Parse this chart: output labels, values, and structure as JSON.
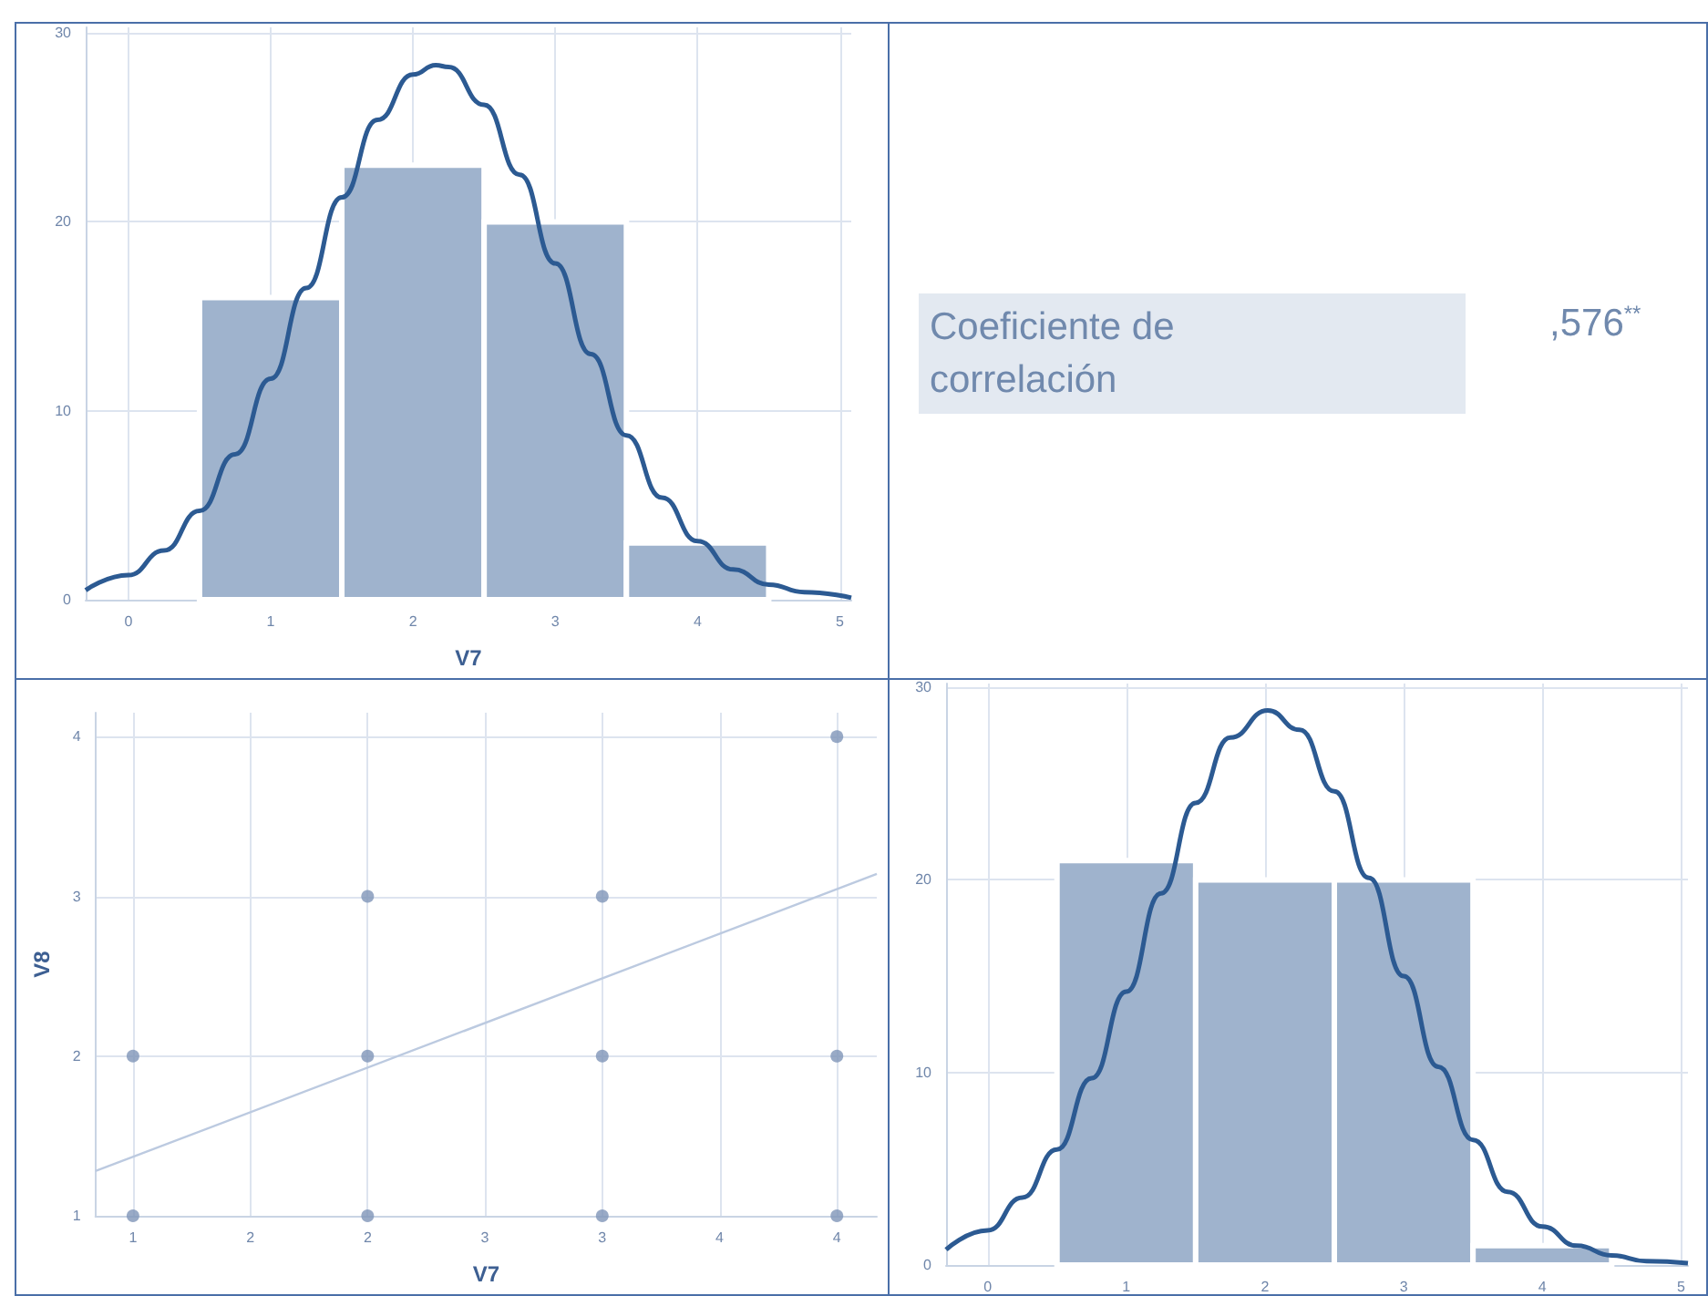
{
  "chart_data": [
    {
      "type": "histogram",
      "xlabel": "V7",
      "bins": [
        0.5,
        1.5,
        2.5,
        3.5,
        4.5
      ],
      "values": [
        16,
        23,
        20,
        3
      ],
      "color": "#9fb3cd",
      "xlim": [
        -0.3,
        5.08
      ],
      "xticks": [
        0,
        1,
        2,
        3,
        4,
        5
      ],
      "ylim": [
        0,
        30.3
      ],
      "yticks": [
        0,
        10,
        20,
        30
      ],
      "grid": true,
      "series": [
        {
          "type": "line",
          "color": "#2c5a92",
          "x": [
            -0.3,
            0,
            0.25,
            0.5,
            0.75,
            1,
            1.25,
            1.5,
            1.75,
            2,
            2.16,
            2.25,
            2.5,
            2.75,
            3,
            3.25,
            3.5,
            3.75,
            4,
            4.25,
            4.5,
            4.75,
            5.08
          ],
          "values": [
            0.5,
            1.3,
            2.6,
            4.7,
            7.7,
            11.7,
            16.5,
            21.3,
            25.4,
            27.8,
            28.3,
            28.2,
            26.2,
            22.5,
            17.8,
            13.0,
            8.7,
            5.4,
            3.1,
            1.6,
            0.8,
            0.4,
            0.1
          ]
        }
      ]
    },
    {
      "type": "other",
      "annotations": [
        "Coeficiente de correlación",
        ",576$^{**}$"
      ]
    },
    {
      "type": "scatter",
      "xlabel": "V7",
      "ylabel": "V8",
      "grid": true,
      "xlim": [
        0.84,
        4.17
      ],
      "xticks": [
        1,
        {
          "value": 1.5,
          "label": "2"
        },
        2,
        {
          "value": 2.5,
          "label": "3"
        },
        3,
        {
          "value": 3.5,
          "label": "4"
        },
        4
      ],
      "ylim": [
        1,
        4.15
      ],
      "yticks": [
        1,
        2,
        3,
        4
      ],
      "series": [
        {
          "color": "#7f95b8",
          "marker": "circle",
          "x": [
            1,
            1,
            2,
            2,
            2,
            3,
            3,
            3,
            4,
            4,
            4
          ],
          "values": [
            2,
            1,
            3,
            2,
            1,
            3,
            2,
            1,
            4,
            2,
            1
          ]
        },
        {
          "type": "line",
          "color": "#bccae0",
          "marker": "none",
          "x": [
            0.84,
            4.17
          ],
          "values": [
            1.28,
            3.14
          ]
        }
      ]
    },
    {
      "type": "histogram",
      "bins": [
        0.5,
        1.5,
        2.5,
        3.5,
        4.5
      ],
      "values": [
        21,
        20,
        20,
        1
      ],
      "color": "#9fb3cd",
      "xlim": [
        -0.3,
        5.05
      ],
      "xticks": [
        0,
        1,
        2,
        3,
        4,
        5
      ],
      "ylim": [
        0,
        30.2
      ],
      "yticks": [
        0,
        10,
        20,
        30
      ],
      "grid": true,
      "series": [
        {
          "type": "line",
          "color": "#2c5a92",
          "x": [
            -0.3,
            0,
            0.25,
            0.5,
            0.75,
            1,
            1.25,
            1.5,
            1.75,
            2.02,
            2.25,
            2.5,
            2.75,
            3,
            3.25,
            3.5,
            3.75,
            4,
            4.25,
            4.5,
            4.75,
            5.05
          ],
          "values": [
            0.8,
            1.8,
            3.5,
            6.0,
            9.7,
            14.2,
            19.3,
            24.0,
            27.4,
            28.8,
            27.8,
            24.6,
            20.1,
            15.0,
            10.3,
            6.5,
            3.8,
            2.0,
            1.0,
            0.5,
            0.2,
            0.1
          ]
        }
      ]
    }
  ]
}
